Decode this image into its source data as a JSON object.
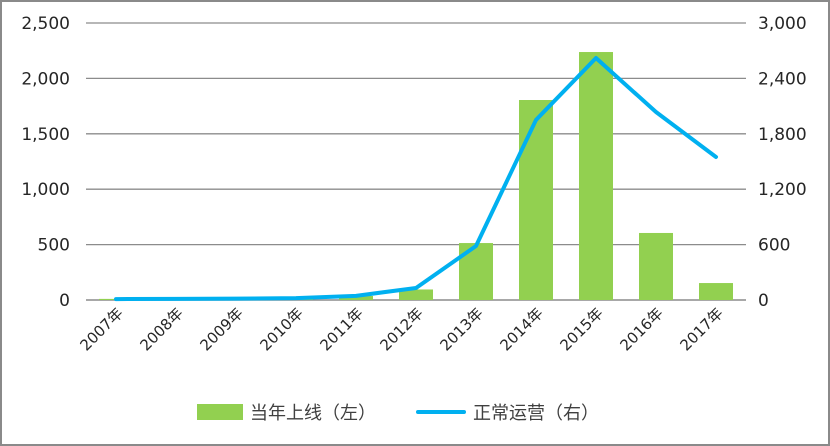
{
  "chart_data": {
    "type": "bar+line",
    "title": "",
    "categories": [
      "2007年",
      "2008年",
      "2009年",
      "2010年",
      "2011年",
      "2012年",
      "2013年",
      "2014年",
      "2015年",
      "2016年",
      "2017年"
    ],
    "series": [
      {
        "name": "当年上线（左）",
        "type": "bar",
        "axis": "left",
        "color": "#92d050",
        "values": [
          10,
          8,
          10,
          12,
          36,
          95,
          514,
          1805,
          2238,
          605,
          153
        ]
      },
      {
        "name": "正常运营（右）",
        "type": "line",
        "axis": "right",
        "color": "#00b0f0",
        "values": [
          10,
          12,
          15,
          20,
          45,
          130,
          585,
          1950,
          2621,
          2036,
          1549
        ]
      }
    ],
    "left_axis": {
      "ylim": [
        0,
        2500
      ],
      "ticks": [
        "0",
        "500",
        "1,000",
        "1,500",
        "2,000",
        "2,500"
      ]
    },
    "right_axis": {
      "ylim": [
        0,
        3000
      ],
      "ticks": [
        "0",
        "600",
        "1,200",
        "1,800",
        "2,400",
        "3,000"
      ]
    },
    "grid": true,
    "legend_position": "bottom",
    "xlabel": "",
    "ylabel": ""
  },
  "legend": {
    "bar_label": "当年上线（左）",
    "line_label": "正常运营（右）"
  }
}
